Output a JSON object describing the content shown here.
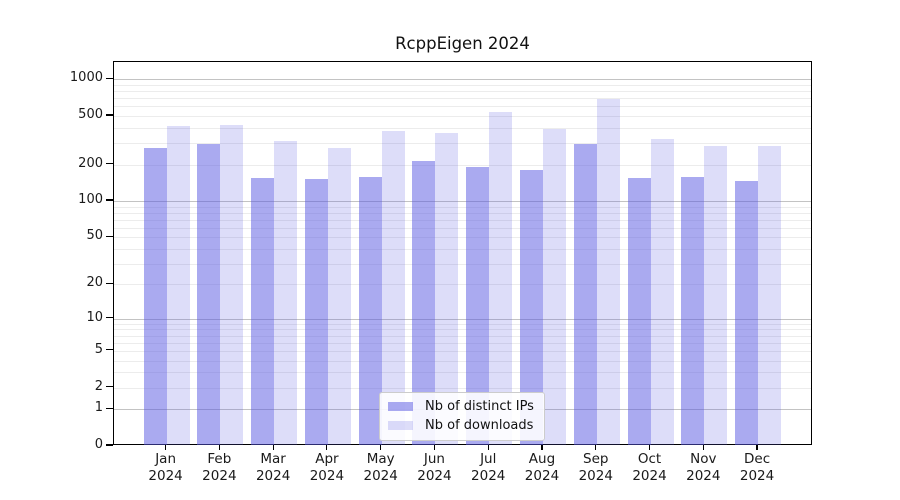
{
  "title": "RcppEigen 2024",
  "chart_data": {
    "type": "bar",
    "title": "RcppEigen 2024",
    "categories": [
      "Jan",
      "Feb",
      "Mar",
      "Apr",
      "May",
      "Jun",
      "Jul",
      "Aug",
      "Sep",
      "Oct",
      "Nov",
      "Dec"
    ],
    "year_label": "2024",
    "series": [
      {
        "name": "Nb of distinct IPs",
        "values": [
          275,
          295,
          155,
          153,
          157,
          215,
          192,
          180,
          295,
          155,
          158,
          145
        ],
        "color": "rgba(85,85,225,0.5)"
      },
      {
        "name": "Nb of downloads",
        "values": [
          418,
          420,
          310,
          272,
          375,
          360,
          543,
          388,
          685,
          326,
          285,
          286
        ],
        "color": "rgba(85,85,225,0.2)"
      }
    ],
    "y_ticks": [
      0,
      1,
      2,
      5,
      10,
      20,
      50,
      100,
      200,
      500,
      1000
    ],
    "y_scale": "log1p",
    "ylim": [
      0,
      1400
    ],
    "grid": "horizontal, log minor + major decade lines",
    "legend_position": "lower center",
    "colors": {
      "grid_major": "#c3c3c3",
      "grid_minor": "#ececec",
      "axis": "#000000",
      "text": "#1a1a1a"
    }
  }
}
